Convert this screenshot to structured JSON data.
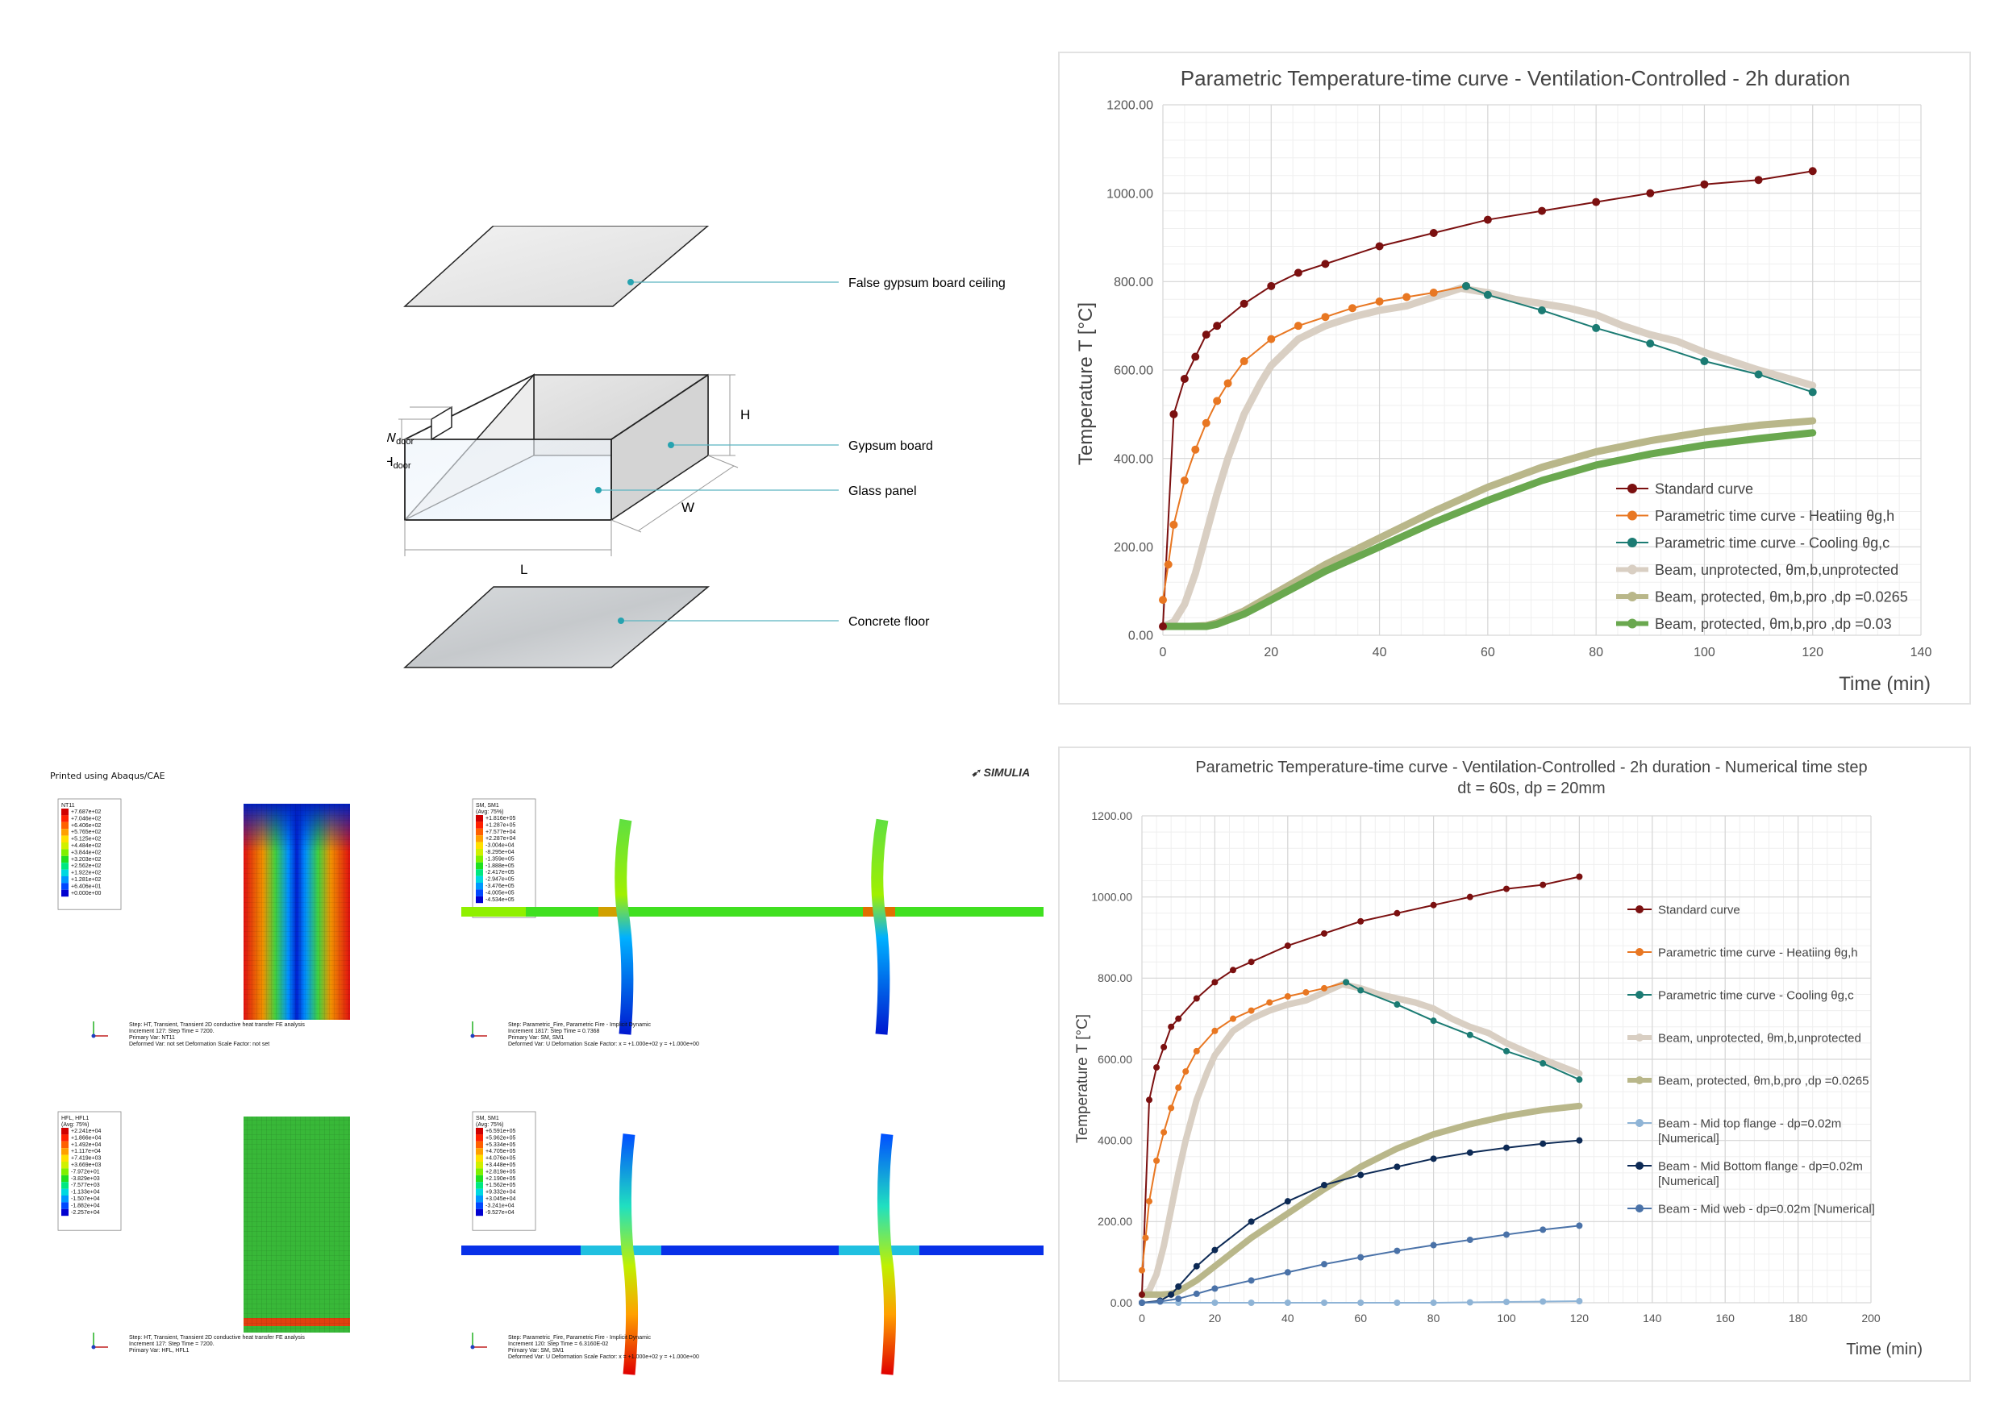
{
  "diagram": {
    "labels": {
      "ceiling": "False gypsum board ceiling",
      "gypsum": "Gypsum board",
      "glass": "Glass panel",
      "floor": "Concrete floor",
      "H": "H",
      "W": "W",
      "L": "L",
      "wdoor_main": "W",
      "wdoor_sub": "door",
      "hdoor_main": "H",
      "hdoor_sub": "door"
    },
    "colors": {
      "leader": "#5bb5c0",
      "dot": "#27a3b0",
      "edge": "#222222"
    }
  },
  "fe": {
    "printed": "Printed using Abaqus/CAE",
    "brand": "SIMULIA",
    "panels": [
      {
        "legend_title": "NT11",
        "legend_sub": "",
        "legend_values": [
          "+7.687e+02",
          "+7.046e+02",
          "+6.406e+02",
          "+5.765e+02",
          "+5.125e+02",
          "+4.484e+02",
          "+3.844e+02",
          "+3.203e+02",
          "+2.562e+02",
          "+1.922e+02",
          "+1.281e+02",
          "+6.406e+01",
          "+0.000e+00"
        ],
        "footer": [
          "Step: HT, Transient, Transient 2D conductive heat transfer FE analysis",
          "Increment    127: Step Time =    7200.",
          "Primary Var: NT11",
          "Deformed Var: not set   Deformation Scale Factor: not set"
        ]
      },
      {
        "legend_title": "SM, SM1",
        "legend_sub": "(Avg: 75%)",
        "legend_values": [
          "+1.816e+05",
          "+1.287e+05",
          "+7.577e+04",
          "+2.287e+04",
          "-3.004e+04",
          "-8.295e+04",
          "-1.359e+05",
          "-1.888e+05",
          "-2.417e+05",
          "-2.947e+05",
          "-3.476e+05",
          "-4.005e+05",
          "-4.534e+05"
        ],
        "footer": [
          "Step: Parametric_Fire, Parametric Fire - Implicit Dynamic",
          "Increment   1817: Step Time =   0.7368",
          "Primary Var: SM, SM1",
          "Deformed Var: U   Deformation Scale Factor: x = +1.000e+02  y = +1.000e+00"
        ]
      },
      {
        "legend_title": "HFL, HFL1",
        "legend_sub": "(Avg: 75%)",
        "legend_values": [
          "+2.241e+04",
          "+1.866e+04",
          "+1.492e+04",
          "+1.117e+04",
          "+7.419e+03",
          "+3.669e+03",
          "-7.972e+01",
          "-3.829e+03",
          "-7.577e+03",
          "-1.133e+04",
          "-1.507e+04",
          "-1.882e+04",
          "-2.257e+04"
        ],
        "footer": [
          "Step: HT, Transient, Transient 2D conductive heat transfer FE analysis",
          "Increment    127: Step Time =    7200.",
          "Primary Var: HFL, HFL1"
        ]
      },
      {
        "legend_title": "SM, SM1",
        "legend_sub": "(Avg: 75%)",
        "legend_values": [
          "+6.591e+05",
          "+5.962e+05",
          "+5.334e+05",
          "+4.705e+05",
          "+4.076e+05",
          "+3.448e+05",
          "+2.819e+05",
          "+2.190e+05",
          "+1.562e+05",
          "+9.332e+04",
          "+3.045e+04",
          "-3.241e+04",
          "-9.527e+04"
        ],
        "footer": [
          "Step: Parametric_Fire, Parametric Fire - Implicit Dynamic",
          "Increment    120: Step Time =   6.3160E-02",
          "Primary Var: SM, SM1",
          "Deformed Var: U   Deformation Scale Factor: x = +1.000e+02  y = +1.000e+00"
        ]
      }
    ],
    "colormap": [
      "#0000d0",
      "#0048ff",
      "#0098ff",
      "#00d8e0",
      "#00e880",
      "#20e020",
      "#80f000",
      "#d0f000",
      "#ffe000",
      "#ffa000",
      "#ff6000",
      "#ff2000",
      "#d00000"
    ]
  },
  "chart_data": [
    {
      "type": "line",
      "title": "Parametric Temperature-time curve - Ventilation-Controlled - 2h duration",
      "subtitle": "",
      "xlabel": "Time (min)",
      "ylabel": "Temperature T [°C]",
      "xlim": [
        0,
        140
      ],
      "ylim": [
        0,
        1200
      ],
      "xticks": [
        "0",
        "20",
        "40",
        "60",
        "80",
        "100",
        "120",
        "140"
      ],
      "yticks": [
        "0.00",
        "200.00",
        "400.00",
        "600.00",
        "800.00",
        "1000.00",
        "1200.00"
      ],
      "grid": true,
      "legend_position": "bottom-right",
      "series": [
        {
          "name": "Standard curve",
          "color": "#7b1010",
          "markers": true,
          "width": 2,
          "x": [
            0,
            2,
            4,
            6,
            8,
            10,
            15,
            20,
            25,
            30,
            40,
            50,
            60,
            70,
            80,
            90,
            100,
            110,
            120
          ],
          "y": [
            20,
            500,
            580,
            630,
            680,
            700,
            750,
            790,
            820,
            840,
            880,
            910,
            940,
            960,
            980,
            1000,
            1020,
            1030,
            1050
          ]
        },
        {
          "name": "Parametric time curve - Heatiing θg,h",
          "color": "#e87722",
          "markers": true,
          "width": 2,
          "x": [
            0,
            1,
            2,
            4,
            6,
            8,
            10,
            12,
            15,
            20,
            25,
            30,
            35,
            40,
            45,
            50,
            56
          ],
          "y": [
            80,
            160,
            250,
            350,
            420,
            480,
            530,
            570,
            620,
            670,
            700,
            720,
            740,
            755,
            765,
            775,
            790
          ]
        },
        {
          "name": "Parametric time curve - Cooling θg,c",
          "color": "#1b7b73",
          "markers": true,
          "width": 2,
          "x": [
            56,
            60,
            70,
            80,
            90,
            100,
            110,
            120
          ],
          "y": [
            790,
            770,
            735,
            695,
            660,
            620,
            590,
            550
          ]
        },
        {
          "name": "Beam, unprotected, θm,b,unprotected",
          "color": "#d9cfc3",
          "markers": false,
          "width": 9,
          "x": [
            0,
            2,
            4,
            6,
            8,
            10,
            12,
            15,
            18,
            20,
            25,
            30,
            35,
            40,
            45,
            50,
            55,
            60,
            65,
            70,
            75,
            80,
            85,
            90,
            95,
            100,
            110,
            120
          ],
          "y": [
            20,
            30,
            70,
            140,
            230,
            320,
            400,
            500,
            570,
            610,
            670,
            700,
            720,
            735,
            745,
            765,
            785,
            775,
            760,
            750,
            740,
            725,
            700,
            680,
            665,
            640,
            600,
            565
          ]
        },
        {
          "name": "Beam, protected, θm,b,pro ,dp =0.0265",
          "color": "#b9b78a",
          "markers": false,
          "width": 9,
          "x": [
            0,
            5,
            8,
            10,
            15,
            20,
            30,
            40,
            50,
            60,
            70,
            80,
            90,
            100,
            110,
            120
          ],
          "y": [
            20,
            20,
            22,
            28,
            55,
            90,
            160,
            220,
            280,
            335,
            380,
            415,
            440,
            460,
            475,
            485
          ]
        },
        {
          "name": "Beam, protected, θm,b,pro ,dp =0.03",
          "color": "#6aa84f",
          "markers": false,
          "width": 9,
          "x": [
            0,
            5,
            8,
            10,
            15,
            20,
            30,
            40,
            50,
            60,
            70,
            80,
            90,
            100,
            110,
            120
          ],
          "y": [
            20,
            20,
            20,
            25,
            48,
            80,
            145,
            200,
            255,
            305,
            350,
            385,
            410,
            430,
            445,
            458
          ]
        }
      ]
    },
    {
      "type": "line",
      "title": "Parametric Temperature-time curve - Ventilation-Controlled - 2h duration - Numerical time step",
      "subtitle": "dt = 60s, dp = 20mm",
      "xlabel": "Time (min)",
      "ylabel": "Temperature T [°C]",
      "xlim": [
        0,
        200
      ],
      "ylim": [
        0,
        1200
      ],
      "xticks": [
        "0",
        "20",
        "40",
        "60",
        "80",
        "100",
        "120",
        "140",
        "160",
        "180",
        "200"
      ],
      "yticks": [
        "0.00",
        "200.00",
        "400.00",
        "600.00",
        "800.00",
        "1000.00",
        "1200.00"
      ],
      "grid": true,
      "legend_position": "right",
      "series": [
        {
          "name": "Standard curve",
          "color": "#7b1010",
          "markers": true,
          "width": 2,
          "x": [
            0,
            2,
            4,
            6,
            8,
            10,
            15,
            20,
            25,
            30,
            40,
            50,
            60,
            70,
            80,
            90,
            100,
            110,
            120
          ],
          "y": [
            20,
            500,
            580,
            630,
            680,
            700,
            750,
            790,
            820,
            840,
            880,
            910,
            940,
            960,
            980,
            1000,
            1020,
            1030,
            1050
          ]
        },
        {
          "name": "Parametric time curve - Heatiing θg,h",
          "color": "#e87722",
          "markers": true,
          "width": 2,
          "x": [
            0,
            1,
            2,
            4,
            6,
            8,
            10,
            12,
            15,
            20,
            25,
            30,
            35,
            40,
            45,
            50,
            56
          ],
          "y": [
            80,
            160,
            250,
            350,
            420,
            480,
            530,
            570,
            620,
            670,
            700,
            720,
            740,
            755,
            765,
            775,
            790
          ]
        },
        {
          "name": "Parametric time curve - Cooling θg,c",
          "color": "#1b7b73",
          "markers": true,
          "width": 2,
          "x": [
            56,
            60,
            70,
            80,
            90,
            100,
            110,
            120
          ],
          "y": [
            790,
            770,
            735,
            695,
            660,
            620,
            590,
            550
          ]
        },
        {
          "name": "Beam, unprotected, θm,b,unprotected",
          "color": "#d9cfc3",
          "markers": false,
          "width": 8,
          "x": [
            0,
            2,
            4,
            6,
            8,
            10,
            12,
            15,
            18,
            20,
            25,
            30,
            35,
            40,
            45,
            50,
            55,
            60,
            65,
            70,
            75,
            80,
            85,
            90,
            95,
            100,
            110,
            120
          ],
          "y": [
            20,
            30,
            70,
            140,
            230,
            320,
            400,
            500,
            570,
            610,
            670,
            700,
            720,
            735,
            745,
            765,
            785,
            775,
            760,
            750,
            740,
            725,
            700,
            680,
            665,
            640,
            600,
            565
          ]
        },
        {
          "name": "Beam, protected, θm,b,pro ,dp =0.0265",
          "color": "#b9b78a",
          "markers": false,
          "width": 8,
          "x": [
            0,
            5,
            8,
            10,
            15,
            20,
            30,
            40,
            50,
            60,
            70,
            80,
            90,
            100,
            110,
            120
          ],
          "y": [
            20,
            20,
            22,
            28,
            55,
            90,
            160,
            220,
            280,
            335,
            380,
            415,
            440,
            460,
            475,
            485
          ]
        },
        {
          "name": "Beam - Mid top flange - dp=0.02m [Numerical]",
          "color": "#8fb4d6",
          "markers": true,
          "width": 2,
          "x": [
            0,
            10,
            20,
            30,
            40,
            50,
            60,
            70,
            80,
            90,
            100,
            110,
            120
          ],
          "y": [
            0,
            0,
            0,
            0,
            0,
            0,
            0,
            0,
            0,
            1,
            2,
            3,
            4
          ]
        },
        {
          "name": "Beam - Mid Bottom flange - dp=0.02m [Numerical]",
          "color": "#0d2a55",
          "markers": true,
          "width": 2,
          "x": [
            0,
            5,
            8,
            10,
            15,
            20,
            30,
            40,
            50,
            60,
            70,
            80,
            90,
            100,
            110,
            120
          ],
          "y": [
            0,
            5,
            20,
            40,
            90,
            130,
            200,
            250,
            290,
            315,
            335,
            355,
            370,
            382,
            392,
            400
          ]
        },
        {
          "name": "Beam - Mid web - dp=0.02m [Numerical]",
          "color": "#4a72a8",
          "markers": true,
          "width": 2,
          "x": [
            0,
            5,
            10,
            15,
            20,
            30,
            40,
            50,
            60,
            70,
            80,
            90,
            100,
            110,
            120
          ],
          "y": [
            0,
            3,
            10,
            22,
            35,
            55,
            75,
            95,
            112,
            128,
            142,
            155,
            168,
            180,
            190
          ]
        }
      ]
    }
  ]
}
